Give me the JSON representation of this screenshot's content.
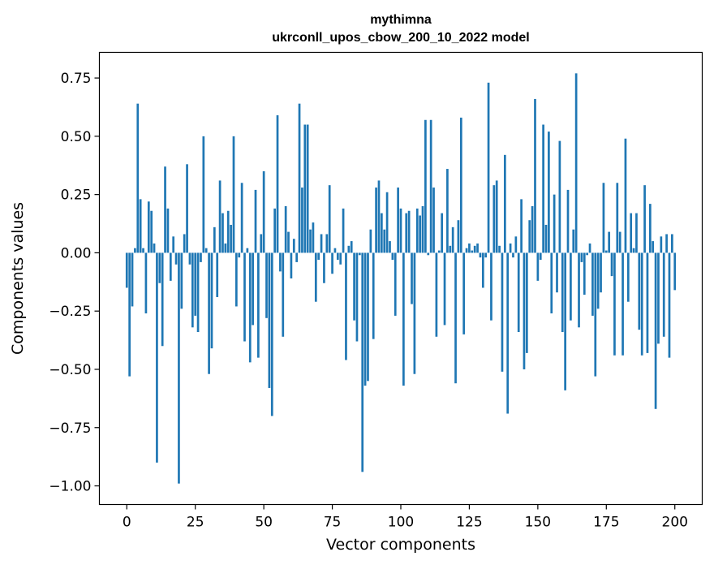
{
  "chart_data": {
    "type": "bar",
    "title": "mythimna",
    "subtitle": "ukrconll_upos_cbow_200_10_2022 model",
    "xlabel": "Vector components",
    "ylabel": "Components values",
    "xlim": [
      -10,
      210
    ],
    "ylim": [
      -1.08,
      0.86
    ],
    "xticks": [
      0,
      25,
      50,
      75,
      100,
      125,
      150,
      175,
      200
    ],
    "xtick_labels": [
      "0",
      "25",
      "50",
      "75",
      "100",
      "125",
      "150",
      "175",
      "200"
    ],
    "yticks": [
      0.75,
      0.5,
      0.25,
      0.0,
      -0.25,
      -0.5,
      -0.75,
      -1.0
    ],
    "ytick_labels": [
      "0.75",
      "0.50",
      "0.25",
      "0.00",
      "−0.25",
      "−0.50",
      "−0.75",
      "−1.00"
    ],
    "grid": false,
    "legend": "none",
    "bar_color": "#1f77b4",
    "values": [
      -0.15,
      -0.53,
      -0.23,
      0.02,
      0.64,
      0.23,
      0.02,
      -0.26,
      0.22,
      0.18,
      0.04,
      -0.9,
      -0.13,
      -0.4,
      0.37,
      0.19,
      -0.12,
      0.07,
      -0.05,
      -0.99,
      -0.24,
      0.08,
      0.38,
      -0.05,
      -0.32,
      -0.27,
      -0.34,
      -0.04,
      0.5,
      0.02,
      -0.52,
      -0.41,
      0.11,
      -0.19,
      0.31,
      0.17,
      0.04,
      0.18,
      0.12,
      0.5,
      -0.23,
      -0.02,
      0.3,
      -0.38,
      0.02,
      -0.47,
      -0.31,
      0.27,
      -0.45,
      0.08,
      0.35,
      -0.28,
      -0.58,
      -0.7,
      0.19,
      0.59,
      -0.08,
      -0.36,
      0.2,
      0.09,
      -0.11,
      0.06,
      -0.04,
      0.64,
      0.28,
      0.55,
      0.55,
      0.1,
      0.13,
      -0.21,
      -0.03,
      0.08,
      -0.13,
      0.08,
      0.29,
      -0.09,
      0.02,
      -0.03,
      -0.05,
      0.19,
      -0.46,
      0.03,
      0.05,
      -0.29,
      -0.38,
      -0.01,
      -0.94,
      -0.57,
      -0.55,
      0.1,
      -0.37,
      0.28,
      0.31,
      0.17,
      0.1,
      0.26,
      0.05,
      -0.03,
      -0.27,
      0.28,
      0.19,
      -0.57,
      0.17,
      0.18,
      -0.22,
      -0.52,
      0.19,
      0.16,
      0.2,
      0.57,
      -0.01,
      0.57,
      0.28,
      -0.36,
      0.01,
      0.17,
      -0.31,
      0.36,
      0.03,
      0.11,
      -0.56,
      0.14,
      0.58,
      -0.35,
      0.02,
      0.04,
      0.01,
      0.03,
      0.04,
      -0.02,
      -0.15,
      -0.02,
      0.73,
      -0.29,
      0.29,
      0.31,
      0.03,
      -0.51,
      0.42,
      -0.69,
      0.04,
      -0.02,
      0.07,
      -0.34,
      0.23,
      -0.5,
      -0.43,
      0.14,
      0.2,
      0.66,
      -0.12,
      -0.03,
      0.55,
      0.12,
      0.52,
      -0.26,
      0.25,
      -0.17,
      0.48,
      -0.34,
      -0.59,
      0.27,
      -0.29,
      0.1,
      0.77,
      -0.32,
      -0.04,
      -0.18,
      -0.01,
      0.04,
      -0.27,
      -0.53,
      -0.24,
      -0.17,
      0.3,
      0.01,
      0.09,
      -0.1,
      -0.44,
      0.3,
      0.09,
      -0.44,
      0.49,
      -0.21,
      0.17,
      0.02,
      0.17,
      -0.33,
      -0.44,
      0.29,
      -0.43,
      0.21,
      0.05,
      -0.67,
      -0.39,
      0.07,
      -0.36,
      0.08,
      -0.45,
      0.08,
      -0.16
    ]
  }
}
